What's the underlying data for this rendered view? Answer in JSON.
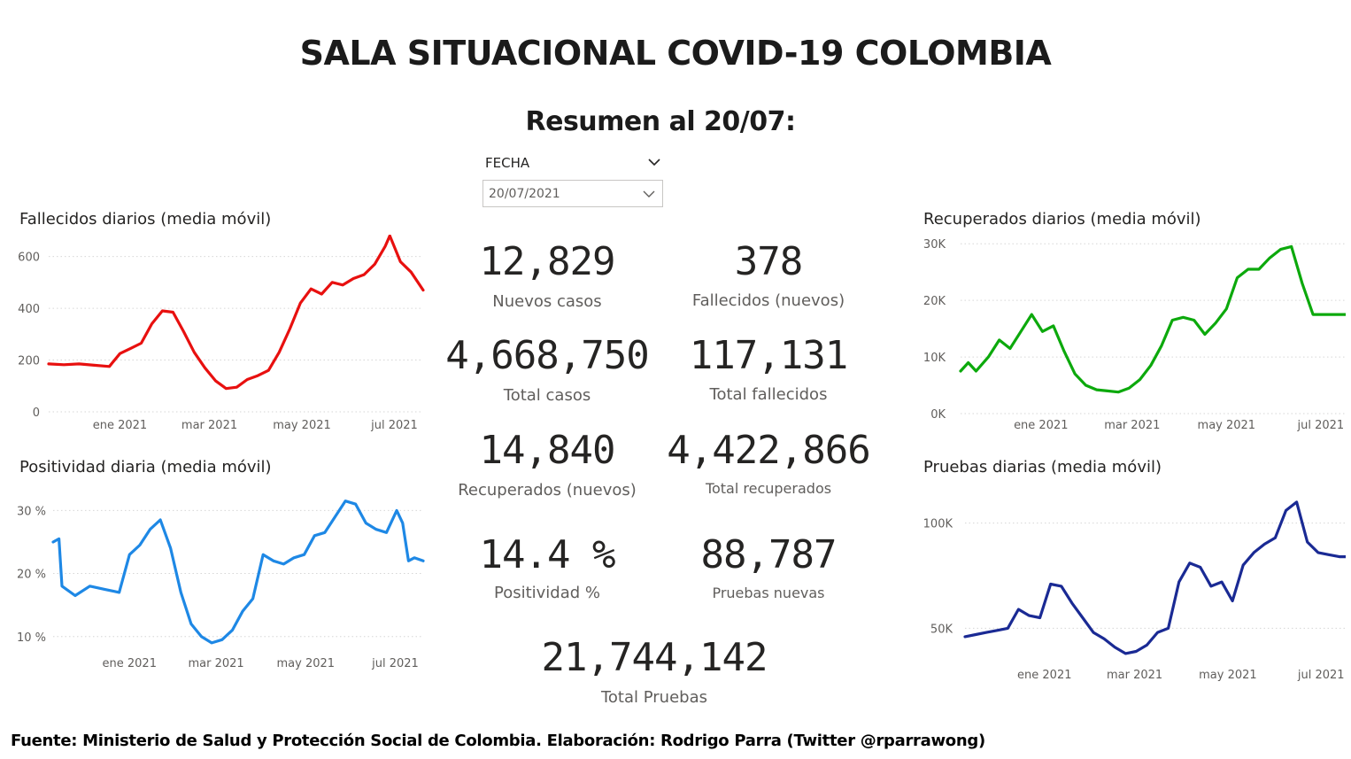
{
  "header": {
    "title": "SALA SITUACIONAL COVID-19 COLOMBIA",
    "subtitle": "Resumen al 20/07:"
  },
  "slicer": {
    "label": "FECHA",
    "value": "20/07/2021"
  },
  "kpis": [
    {
      "value": "12,829",
      "label": "Nuevos casos"
    },
    {
      "value": "378",
      "label": "Fallecidos (nuevos)"
    },
    {
      "value": "4,668,750",
      "label": "Total casos"
    },
    {
      "value": "117,131",
      "label": "Total fallecidos"
    },
    {
      "value": "14,840",
      "label": "Recuperados (nuevos)"
    },
    {
      "value": "4,422,866",
      "label": "Total recuperados"
    },
    {
      "value": "14.4 %",
      "label": "Positividad %"
    },
    {
      "value": "88,787",
      "label": "Pruebas nuevas"
    },
    {
      "value": "21,744,142",
      "label": "Total Pruebas"
    }
  ],
  "footer": "Fuente: Ministerio de Salud y Protección Social de Colombia. Elaboración: Rodrigo Parra (Twitter @rparrawong)",
  "chart_data": [
    {
      "id": "fallecidos",
      "type": "line",
      "title": "Fallecidos diarios (media móvil)",
      "color": "#e8100f",
      "xlabel": "",
      "ylabel": "",
      "x_ticks": [
        "ene 2021",
        "mar 2021",
        "may 2021",
        "jul 2021"
      ],
      "y_ticks": [
        "0",
        "200",
        "400",
        "600"
      ],
      "y_tick_values": [
        0,
        200,
        400,
        600
      ],
      "xlim": [
        "2020-11-15",
        "2021-07-20"
      ],
      "ylim": [
        0,
        650
      ],
      "grid": true,
      "x": [
        "2020-11-15",
        "2020-11-25",
        "2020-12-05",
        "2020-12-15",
        "2020-12-25",
        "2021-01-01",
        "2021-01-08",
        "2021-01-15",
        "2021-01-22",
        "2021-01-29",
        "2021-02-05",
        "2021-02-12",
        "2021-02-19",
        "2021-02-26",
        "2021-03-05",
        "2021-03-12",
        "2021-03-19",
        "2021-03-26",
        "2021-04-02",
        "2021-04-09",
        "2021-04-16",
        "2021-04-23",
        "2021-04-30",
        "2021-05-07",
        "2021-05-14",
        "2021-05-21",
        "2021-05-28",
        "2021-06-04",
        "2021-06-11",
        "2021-06-18",
        "2021-06-25",
        "2021-06-28",
        "2021-07-05",
        "2021-07-12",
        "2021-07-20"
      ],
      "values": [
        185,
        182,
        185,
        180,
        175,
        225,
        245,
        265,
        340,
        390,
        385,
        310,
        230,
        170,
        120,
        90,
        95,
        125,
        140,
        160,
        230,
        320,
        420,
        475,
        455,
        500,
        490,
        515,
        530,
        570,
        640,
        680,
        580,
        540,
        470
      ]
    },
    {
      "id": "positividad",
      "type": "line",
      "title": "Positividad diaria (media móvil)",
      "color": "#1e88e5",
      "xlabel": "",
      "ylabel": "",
      "x_ticks": [
        "ene 2021",
        "mar 2021",
        "may 2021",
        "jul 2021"
      ],
      "y_ticks": [
        "10 %",
        "20 %",
        "30 %"
      ],
      "y_tick_values": [
        10,
        20,
        30
      ],
      "xlim": [
        "2020-11-10",
        "2021-07-20"
      ],
      "ylim": [
        8,
        33
      ],
      "grid": true,
      "x": [
        "2020-11-10",
        "2020-11-14",
        "2020-11-16",
        "2020-11-25",
        "2020-12-05",
        "2020-12-15",
        "2020-12-25",
        "2021-01-01",
        "2021-01-08",
        "2021-01-15",
        "2021-01-22",
        "2021-01-29",
        "2021-02-05",
        "2021-02-12",
        "2021-02-19",
        "2021-02-26",
        "2021-03-05",
        "2021-03-12",
        "2021-03-19",
        "2021-03-26",
        "2021-04-02",
        "2021-04-09",
        "2021-04-16",
        "2021-04-23",
        "2021-04-30",
        "2021-05-07",
        "2021-05-14",
        "2021-05-21",
        "2021-05-28",
        "2021-06-04",
        "2021-06-11",
        "2021-06-18",
        "2021-06-25",
        "2021-07-02",
        "2021-07-06",
        "2021-07-10",
        "2021-07-14",
        "2021-07-20"
      ],
      "values": [
        25,
        25.5,
        18,
        16.5,
        18,
        17.5,
        17,
        23,
        24.5,
        27,
        28.5,
        24,
        17,
        12,
        10,
        9,
        9.5,
        11,
        14,
        16,
        23,
        22,
        21.5,
        22.5,
        23,
        26,
        26.5,
        29,
        31.5,
        31,
        28,
        27,
        26.5,
        30,
        28,
        22,
        22.5,
        22
      ]
    },
    {
      "id": "recuperados",
      "type": "line",
      "title": "Recuperados diarios (media móvil)",
      "color": "#0ca90c",
      "xlabel": "",
      "ylabel": "",
      "x_ticks": [
        "ene 2021",
        "mar 2021",
        "may 2021",
        "jul 2021"
      ],
      "y_ticks": [
        "0K",
        "10K",
        "20K",
        "30K"
      ],
      "y_tick_values": [
        0,
        10000,
        20000,
        30000
      ],
      "xlim": [
        "2020-11-10",
        "2021-07-20"
      ],
      "ylim": [
        0,
        30500
      ],
      "grid": true,
      "x": [
        "2020-11-10",
        "2020-11-15",
        "2020-11-20",
        "2020-11-28",
        "2020-12-05",
        "2020-12-12",
        "2020-12-19",
        "2020-12-26",
        "2021-01-02",
        "2021-01-09",
        "2021-01-16",
        "2021-01-23",
        "2021-01-30",
        "2021-02-06",
        "2021-02-13",
        "2021-02-20",
        "2021-02-27",
        "2021-03-06",
        "2021-03-13",
        "2021-03-20",
        "2021-03-27",
        "2021-04-03",
        "2021-04-10",
        "2021-04-17",
        "2021-04-24",
        "2021-05-01",
        "2021-05-08",
        "2021-05-15",
        "2021-05-22",
        "2021-05-29",
        "2021-06-05",
        "2021-06-12",
        "2021-06-19",
        "2021-06-26",
        "2021-07-03",
        "2021-07-08",
        "2021-07-14",
        "2021-07-20"
      ],
      "values": [
        7500,
        9000,
        7500,
        10000,
        13000,
        11500,
        14500,
        17500,
        14500,
        15500,
        11000,
        7000,
        5000,
        4200,
        4000,
        3800,
        4500,
        6000,
        8500,
        12000,
        16500,
        17000,
        16500,
        14000,
        16000,
        18500,
        24000,
        25500,
        25500,
        27500,
        29000,
        29500,
        23000,
        17500,
        17500,
        17500,
        17500,
        17500
      ]
    },
    {
      "id": "pruebas",
      "type": "line",
      "title": "Pruebas diarias (media móvil)",
      "color": "#1a2a94",
      "xlabel": "",
      "ylabel": "",
      "x_ticks": [
        "ene 2021",
        "mar 2021",
        "may 2021",
        "jul 2021"
      ],
      "y_ticks": [
        "50K",
        "100K"
      ],
      "y_tick_values": [
        50000,
        100000
      ],
      "xlim": [
        "2020-11-10",
        "2021-07-20"
      ],
      "ylim": [
        35000,
        115000
      ],
      "grid": true,
      "x": [
        "2020-11-10",
        "2020-11-17",
        "2020-11-24",
        "2020-12-01",
        "2020-12-08",
        "2020-12-15",
        "2020-12-22",
        "2020-12-29",
        "2021-01-05",
        "2021-01-12",
        "2021-01-19",
        "2021-01-26",
        "2021-02-02",
        "2021-02-09",
        "2021-02-16",
        "2021-02-23",
        "2021-03-02",
        "2021-03-09",
        "2021-03-16",
        "2021-03-23",
        "2021-03-30",
        "2021-04-06",
        "2021-04-13",
        "2021-04-20",
        "2021-04-27",
        "2021-05-04",
        "2021-05-11",
        "2021-05-18",
        "2021-05-25",
        "2021-06-01",
        "2021-06-08",
        "2021-06-15",
        "2021-06-22",
        "2021-06-29",
        "2021-07-06",
        "2021-07-13",
        "2021-07-20"
      ],
      "values": [
        46000,
        47000,
        48000,
        49000,
        50000,
        59000,
        56000,
        55000,
        71000,
        70000,
        62000,
        55000,
        48000,
        45000,
        41000,
        38000,
        39000,
        42000,
        48000,
        50000,
        72000,
        81000,
        79000,
        70000,
        72000,
        63000,
        80000,
        86000,
        90000,
        93000,
        106000,
        110000,
        91000,
        86000,
        85000,
        84000,
        84000
      ]
    }
  ]
}
